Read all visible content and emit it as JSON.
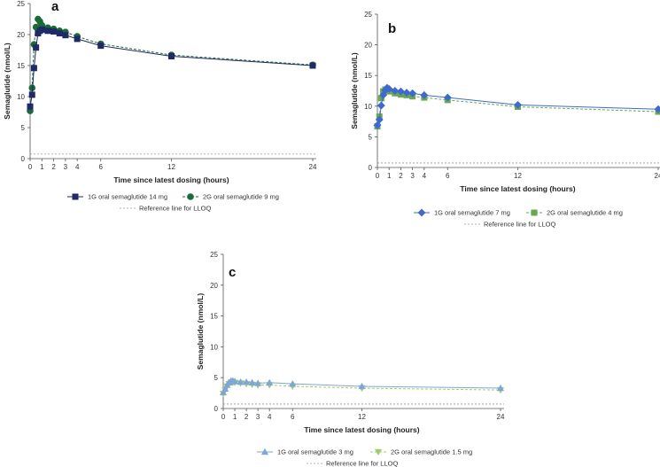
{
  "chart_data": [
    {
      "type": "line",
      "panel": "a",
      "xlabel": "Time since latest dosing (hours)",
      "ylabel": "Semaglutide (nmol/L)",
      "xlim": [
        0,
        24
      ],
      "ylim": [
        0,
        25
      ],
      "xticks": [
        0,
        1,
        2,
        3,
        4,
        6,
        12,
        24
      ],
      "yticks": [
        0,
        5,
        10,
        15,
        20,
        25
      ],
      "lloq": 0.73,
      "lloq_label": "Reference line for LLOQ",
      "lloq_color": "#999999",
      "series": [
        {
          "name": "1G oral semaglutide 14 mg",
          "color": "#1f2a66",
          "marker": "square",
          "dashed": false,
          "x": [
            0,
            0.17,
            0.33,
            0.5,
            0.67,
            0.83,
            1,
            1.5,
            2,
            2.5,
            3,
            4,
            6,
            12,
            24
          ],
          "y": [
            8.4,
            10.3,
            14.6,
            17.9,
            20.2,
            20.6,
            20.8,
            20.6,
            20.5,
            20.2,
            19.9,
            19.3,
            18.2,
            16.5,
            15.0
          ]
        },
        {
          "name": "2G oral semaglutide 9 mg",
          "color": "#1a6b36",
          "marker": "circle",
          "dashed": true,
          "x": [
            0,
            0.17,
            0.33,
            0.5,
            0.67,
            0.83,
            1,
            1.5,
            2,
            2.5,
            3,
            4,
            6,
            12,
            24
          ],
          "y": [
            7.7,
            11.4,
            18.4,
            21.2,
            22.5,
            22.1,
            21.5,
            21.1,
            20.9,
            20.6,
            20.4,
            19.7,
            18.5,
            16.7,
            15.1
          ]
        }
      ]
    },
    {
      "type": "line",
      "panel": "b",
      "xlabel": "Time since latest dosing (hours)",
      "ylabel": "Semaglutide (nmol/L)",
      "xlim": [
        0,
        24
      ],
      "ylim": [
        0,
        25
      ],
      "xticks": [
        0,
        1,
        2,
        3,
        4,
        6,
        12,
        24
      ],
      "yticks": [
        0,
        5,
        10,
        15,
        20,
        25
      ],
      "lloq": 0.73,
      "lloq_label": "Reference line for LLOQ",
      "lloq_color": "#999999",
      "series": [
        {
          "name": "1G oral semaglutide 7 mg",
          "color": "#3e6ad0",
          "marker": "diamond",
          "dashed": false,
          "x": [
            0,
            0.17,
            0.33,
            0.5,
            0.67,
            0.83,
            1,
            1.5,
            2,
            2.5,
            3,
            4,
            6,
            12,
            24
          ],
          "y": [
            6.9,
            7.8,
            10.1,
            11.8,
            12.6,
            13.0,
            12.8,
            12.5,
            12.4,
            12.2,
            12.1,
            11.8,
            11.4,
            10.2,
            9.5
          ]
        },
        {
          "name": "2G oral semaglutide 4 mg",
          "color": "#6aa84f",
          "marker": "square",
          "dashed": true,
          "x": [
            0,
            0.17,
            0.33,
            0.5,
            0.67,
            0.83,
            1,
            1.5,
            2,
            2.5,
            3,
            4,
            6,
            12,
            24
          ],
          "y": [
            6.7,
            8.3,
            11.3,
            12.4,
            12.7,
            12.6,
            12.4,
            12.1,
            11.9,
            11.8,
            11.6,
            11.4,
            11.0,
            9.9,
            9.1
          ]
        }
      ]
    },
    {
      "type": "line",
      "panel": "c",
      "xlabel": "Time since latest dosing (hours)",
      "ylabel": "Semaglutide (nmol/L)",
      "xlim": [
        0,
        24
      ],
      "ylim": [
        0,
        25
      ],
      "xticks": [
        0,
        1,
        2,
        3,
        4,
        6,
        12,
        24
      ],
      "yticks": [
        0,
        5,
        10,
        15,
        20,
        25
      ],
      "lloq": 0.73,
      "lloq_label": "Reference line for LLOQ",
      "lloq_color": "#999999",
      "series": [
        {
          "name": "1G oral semaglutide 3 mg",
          "color": "#7fa6d6",
          "marker": "triangle-up",
          "dashed": false,
          "x": [
            0,
            0.17,
            0.33,
            0.5,
            0.67,
            0.83,
            1,
            1.5,
            2,
            2.5,
            3,
            4,
            6,
            12,
            24
          ],
          "y": [
            2.6,
            3.2,
            3.8,
            4.2,
            4.5,
            4.5,
            4.4,
            4.3,
            4.3,
            4.2,
            4.1,
            4.2,
            4.0,
            3.6,
            3.3
          ]
        },
        {
          "name": "2G oral semaglutide 1.5 mg",
          "color": "#9ccf6a",
          "marker": "triangle-down",
          "dashed": true,
          "x": [
            0,
            0.17,
            0.33,
            0.5,
            0.67,
            0.83,
            1,
            1.5,
            2,
            2.5,
            3,
            4,
            6,
            12,
            24
          ],
          "y": [
            2.4,
            3.0,
            3.6,
            4.0,
            4.2,
            4.2,
            4.2,
            4.1,
            4.0,
            3.9,
            3.8,
            3.8,
            3.6,
            3.3,
            3.0
          ]
        }
      ]
    }
  ]
}
